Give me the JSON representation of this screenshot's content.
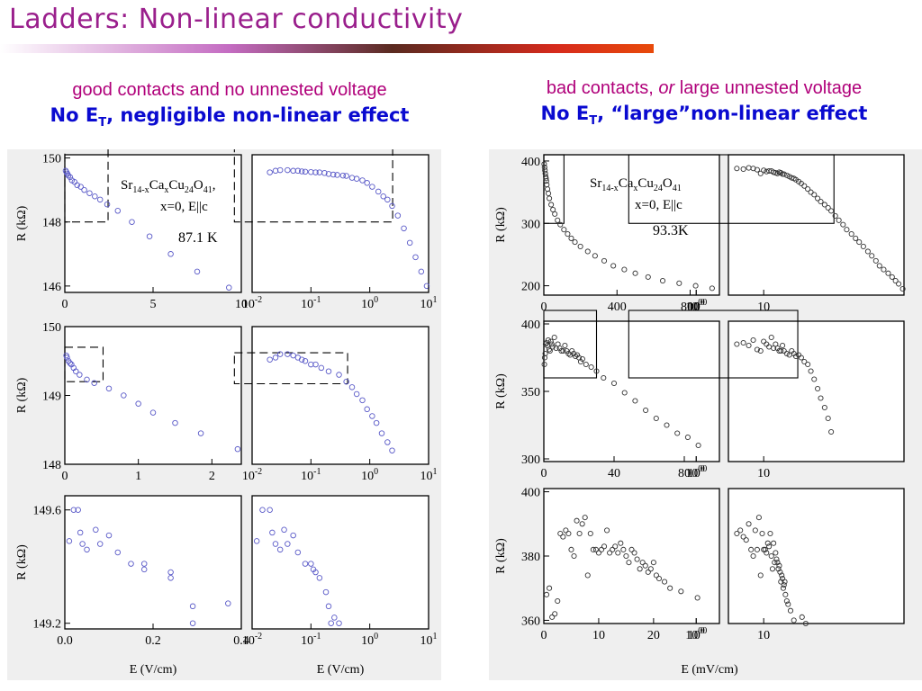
{
  "slide": {
    "title": "Ladders: Non-linear conductivity",
    "left_heading": {
      "line1": "good contacts and no unnested voltage",
      "line2_pre": "No E",
      "line2_sub": "T",
      "line2_post": ", negligible non-linear effect"
    },
    "right_heading": {
      "line1_pre": "bad contacts, ",
      "line1_em": "or",
      "line1_post": " large unnested voltage",
      "line2_pre": "No E",
      "line2_sub": "T",
      "line2_post": ", “large”non-linear effect"
    }
  },
  "left_figure": {
    "sample_label": "Sr14-xCaxCu24O41,",
    "sample_parts": [
      "Sr",
      "14-x",
      "Ca",
      "x",
      "Cu",
      "24",
      "O",
      "41",
      ","
    ],
    "condition": "x=0, E||c",
    "temperature": "87.1 K",
    "xlabel": "E (V/cm)",
    "ylabel": "R (kΩ)",
    "rows": [
      {
        "yticks": [
          "150",
          "148",
          "146"
        ],
        "lin_xticks": [
          "0",
          "5",
          "10"
        ],
        "log_xticks": [
          "10-2",
          "10-1",
          "100",
          "101"
        ]
      },
      {
        "yticks": [
          "150",
          "149",
          "148"
        ],
        "lin_xticks": [
          "0",
          "1",
          "2"
        ],
        "log_xticks": [
          "10-2",
          "10-1",
          "100",
          "101"
        ]
      },
      {
        "yticks": [
          "149.6",
          "149.2"
        ],
        "lin_xticks": [
          "0.0",
          "0.2",
          "0.4"
        ],
        "log_xticks": [
          "10-2",
          "10-1",
          "100",
          "101"
        ]
      }
    ]
  },
  "right_figure": {
    "sample_parts": [
      "Sr",
      "14-x",
      "Ca",
      "x",
      "Cu",
      "24",
      "O",
      "41"
    ],
    "condition": "x=0, E||c",
    "temperature": "93.3K",
    "xlabel": "E (mV/cm)",
    "ylabel": "R (kΩ)",
    "rows": [
      {
        "yticks": [
          "400",
          "300",
          "200"
        ],
        "lin_xticks": [
          "0",
          "400",
          "800"
        ],
        "log_xticks": [
          "10",
          "100",
          "1000"
        ]
      },
      {
        "yticks": [
          "400",
          "350",
          "300"
        ],
        "lin_xticks": [
          "0",
          "40",
          "80"
        ],
        "log_xticks": [
          "10",
          "100",
          "1000"
        ]
      },
      {
        "yticks": [
          "400",
          "380",
          "360"
        ],
        "lin_xticks": [
          "0",
          "10",
          "20"
        ],
        "log_xticks": [
          "10",
          "100",
          "1000"
        ]
      }
    ]
  },
  "chart_data": [
    {
      "type": "scatter",
      "figure": "left",
      "xlabel": "E (V/cm)",
      "ylabel": "R (kΩ)",
      "temperature_label": "87.1 K",
      "panels": [
        {
          "scale": "linear",
          "xlim": [
            0,
            10
          ],
          "ylim": [
            145.8,
            150.1
          ],
          "x": [
            0.05,
            0.1,
            0.15,
            0.2,
            0.3,
            0.4,
            0.55,
            0.7,
            0.9,
            1.1,
            1.4,
            1.7,
            2.0,
            2.4,
            3.0,
            3.8,
            4.8,
            6.0,
            7.5,
            9.3
          ],
          "y": [
            149.6,
            149.55,
            149.5,
            149.45,
            149.4,
            149.3,
            149.25,
            149.15,
            149.1,
            149.0,
            148.9,
            148.8,
            148.7,
            148.55,
            148.35,
            148.0,
            147.55,
            147.0,
            146.45,
            145.95
          ]
        },
        {
          "scale": "log",
          "xlim": [
            0.01,
            10
          ],
          "ylim": [
            145.8,
            150.1
          ],
          "x": [
            0.02,
            0.025,
            0.03,
            0.04,
            0.05,
            0.06,
            0.07,
            0.08,
            0.1,
            0.12,
            0.14,
            0.17,
            0.2,
            0.24,
            0.28,
            0.35,
            0.4,
            0.5,
            0.6,
            0.75,
            0.9,
            1.1,
            1.4,
            1.7,
            2.0,
            2.4,
            3.0,
            3.8,
            4.8,
            6.0,
            7.5,
            9.3
          ],
          "y": [
            149.55,
            149.6,
            149.62,
            149.62,
            149.6,
            149.6,
            149.58,
            149.57,
            149.56,
            149.55,
            149.55,
            149.53,
            149.5,
            149.48,
            149.47,
            149.45,
            149.44,
            149.38,
            149.35,
            149.3,
            149.22,
            149.1,
            148.95,
            148.8,
            148.7,
            148.5,
            148.2,
            147.8,
            147.35,
            146.9,
            146.45,
            146.0
          ]
        },
        {
          "scale": "linear",
          "xlim": [
            0,
            2.4
          ],
          "ylim": [
            148.0,
            150.0
          ],
          "x": [
            0.02,
            0.03,
            0.05,
            0.07,
            0.09,
            0.12,
            0.15,
            0.2,
            0.3,
            0.4,
            0.6,
            0.8,
            1.0,
            1.2,
            1.5,
            1.85,
            2.35
          ],
          "y": [
            149.58,
            149.55,
            149.5,
            149.47,
            149.45,
            149.4,
            149.35,
            149.3,
            149.23,
            149.18,
            149.1,
            149.0,
            148.88,
            148.75,
            148.6,
            148.45,
            148.22
          ]
        },
        {
          "scale": "log",
          "xlim": [
            0.01,
            10
          ],
          "ylim": [
            148.0,
            150.0
          ],
          "x": [
            0.02,
            0.025,
            0.03,
            0.04,
            0.05,
            0.06,
            0.07,
            0.08,
            0.1,
            0.12,
            0.15,
            0.2,
            0.3,
            0.4,
            0.5,
            0.6,
            0.75,
            0.9,
            1.1,
            1.3,
            1.6,
            2.0,
            2.4
          ],
          "y": [
            149.52,
            149.55,
            149.6,
            149.6,
            149.58,
            149.55,
            149.52,
            149.5,
            149.45,
            149.45,
            149.4,
            149.35,
            149.3,
            149.2,
            149.12,
            149.02,
            148.93,
            148.8,
            148.7,
            148.6,
            148.45,
            148.32,
            148.2
          ]
        },
        {
          "scale": "linear",
          "xlim": [
            0,
            0.4
          ],
          "ylim": [
            149.18,
            149.65
          ],
          "x": [
            0.01,
            0.02,
            0.03,
            0.035,
            0.04,
            0.05,
            0.07,
            0.08,
            0.1,
            0.12,
            0.15,
            0.18,
            0.18,
            0.24,
            0.24,
            0.29,
            0.29,
            0.37
          ],
          "y": [
            149.49,
            149.6,
            149.6,
            149.52,
            149.48,
            149.46,
            149.53,
            149.48,
            149.51,
            149.45,
            149.41,
            149.41,
            149.39,
            149.38,
            149.36,
            149.26,
            149.2,
            149.27
          ]
        },
        {
          "scale": "log",
          "xlim": [
            0.01,
            10
          ],
          "ylim": [
            149.18,
            149.65
          ],
          "x": [
            0.012,
            0.015,
            0.02,
            0.022,
            0.025,
            0.03,
            0.035,
            0.04,
            0.05,
            0.06,
            0.08,
            0.1,
            0.11,
            0.12,
            0.14,
            0.18,
            0.2,
            0.22,
            0.25,
            0.3
          ],
          "y": [
            149.49,
            149.6,
            149.6,
            149.52,
            149.48,
            149.46,
            149.53,
            149.48,
            149.51,
            149.45,
            149.41,
            149.41,
            149.39,
            149.38,
            149.36,
            149.31,
            149.26,
            149.2,
            149.22,
            149.2
          ]
        }
      ]
    },
    {
      "type": "scatter",
      "figure": "right",
      "xlabel": "E (mV/cm)",
      "ylabel": "R (kΩ)",
      "temperature_label": "93.3K",
      "panels": [
        {
          "scale": "linear",
          "xlim": [
            0,
            960
          ],
          "ylim": [
            185,
            410
          ],
          "x": [
            2,
            4,
            6,
            8,
            10,
            12,
            14,
            16,
            20,
            25,
            30,
            40,
            50,
            60,
            75,
            90,
            110,
            130,
            150,
            170,
            200,
            240,
            280,
            330,
            380,
            440,
            500,
            570,
            650,
            740,
            830,
            920
          ],
          "y": [
            395,
            390,
            385,
            380,
            375,
            372,
            368,
            362,
            355,
            348,
            340,
            330,
            322,
            315,
            305,
            298,
            290,
            283,
            276,
            270,
            263,
            255,
            248,
            240,
            232,
            226,
            220,
            214,
            208,
            204,
            200,
            196
          ]
        },
        {
          "scale": "log",
          "xlim": [
            3,
            1200
          ],
          "ylim": [
            185,
            410
          ],
          "x": [
            4,
            5,
            6,
            7,
            8,
            9,
            10,
            11,
            12,
            13,
            14,
            15,
            16,
            17,
            18,
            19,
            20,
            22,
            24,
            26,
            28,
            30,
            33,
            36,
            40,
            45,
            50,
            56,
            63,
            70,
            80,
            90,
            100,
            115,
            130,
            150,
            170,
            200,
            230,
            260,
            300,
            350,
            400,
            460,
            520,
            600,
            700,
            800,
            900,
            1000,
            1150
          ],
          "y": [
            388,
            387,
            389,
            388,
            386,
            380,
            385,
            383,
            384,
            384,
            382,
            381,
            380,
            382,
            381,
            379,
            379,
            377,
            375,
            373,
            372,
            370,
            367,
            364,
            360,
            355,
            350,
            346,
            340,
            335,
            330,
            325,
            320,
            312,
            305,
            298,
            290,
            283,
            276,
            270,
            263,
            255,
            248,
            240,
            232,
            226,
            220,
            214,
            208,
            203,
            195
          ]
        },
        {
          "scale": "linear",
          "xlim": [
            0,
            100
          ],
          "ylim": [
            298,
            402
          ],
          "x": [
            0.3,
            0.5,
            0.8,
            1,
            1.5,
            2,
            2.5,
            3,
            3.5,
            4,
            4.5,
            5,
            6,
            7,
            8,
            9,
            10,
            11,
            12,
            13,
            14,
            15,
            16,
            17,
            18,
            19,
            20,
            21,
            22,
            24,
            27,
            30,
            34,
            40,
            46,
            52,
            58,
            64,
            70,
            76,
            82,
            88
          ],
          "y": [
            370,
            375,
            378,
            385,
            386,
            384,
            388,
            381,
            380,
            387,
            385,
            383,
            390,
            382,
            385,
            382,
            380,
            380,
            384,
            380,
            378,
            377,
            380,
            378,
            376,
            377,
            375,
            372,
            374,
            370,
            368,
            365,
            360,
            356,
            349,
            343,
            336,
            330,
            325,
            319,
            316,
            310
          ]
        },
        {
          "scale": "log",
          "xlim": [
            3,
            1200
          ],
          "ylim": [
            298,
            402
          ],
          "x": [
            4,
            5,
            6,
            7,
            8,
            9,
            10,
            11,
            12,
            13,
            14,
            15,
            16,
            17,
            18,
            19,
            20,
            22,
            24,
            26,
            28,
            30,
            33,
            36,
            40,
            45,
            50,
            56,
            63,
            70,
            80,
            90,
            100
          ],
          "y": [
            385,
            386,
            384,
            388,
            381,
            380,
            387,
            385,
            383,
            390,
            382,
            385,
            382,
            380,
            380,
            384,
            380,
            378,
            377,
            380,
            378,
            376,
            377,
            375,
            372,
            370,
            365,
            359,
            352,
            345,
            338,
            330,
            320
          ]
        },
        {
          "scale": "linear",
          "xlim": [
            0,
            32
          ],
          "ylim": [
            359,
            401
          ],
          "x": [
            0.5,
            1,
            1.5,
            2,
            2.5,
            3,
            3.5,
            4,
            4.5,
            5,
            5.5,
            6,
            6.5,
            7,
            7.5,
            8,
            8.5,
            9,
            9.5,
            10,
            10.5,
            11,
            11.5,
            12,
            12.5,
            13,
            13.5,
            14,
            14.5,
            15,
            15.5,
            16,
            16.5,
            17,
            17.5,
            18,
            18.5,
            19,
            19.5,
            20,
            20.5,
            21,
            22,
            23,
            25,
            28
          ],
          "y": [
            368,
            370,
            361,
            362,
            366,
            387,
            386,
            388,
            387,
            382,
            380,
            391,
            387,
            390,
            392,
            374,
            387,
            382,
            382,
            381,
            382,
            383,
            388,
            381,
            382,
            383,
            381,
            384,
            382,
            380,
            378,
            382,
            381,
            379,
            376,
            378,
            377,
            375,
            376,
            378,
            374,
            373,
            372,
            370,
            369,
            367
          ]
        },
        {
          "scale": "log",
          "xlim": [
            3,
            1200
          ],
          "ylim": [
            359,
            401
          ],
          "x": [
            4,
            4.5,
            5,
            5.5,
            6,
            6.5,
            7,
            7.5,
            8,
            8.5,
            9,
            9.5,
            10,
            10.5,
            11,
            11.5,
            12,
            12.5,
            13,
            13.5,
            14,
            14.5,
            15,
            15.5,
            16,
            16.5,
            17,
            17.5,
            18,
            18.5,
            19,
            19.5,
            20,
            20.5,
            21,
            22,
            23,
            25,
            28,
            32,
            37,
            42
          ],
          "y": [
            387,
            388,
            386,
            385,
            390,
            382,
            380,
            388,
            382,
            392,
            374,
            387,
            382,
            382,
            381,
            384,
            383,
            387,
            380,
            376,
            384,
            378,
            381,
            379,
            378,
            376,
            377,
            375,
            372,
            374,
            373,
            370,
            371,
            372,
            368,
            366,
            365,
            363,
            360,
            358,
            361,
            359
          ]
        }
      ]
    }
  ]
}
